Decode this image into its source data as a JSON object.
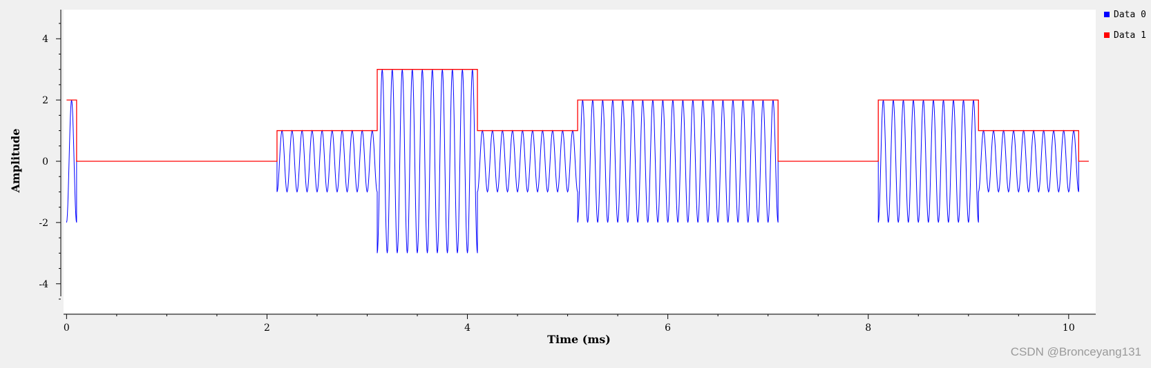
{
  "chart_data": {
    "type": "line",
    "title": "",
    "xlabel": "Time (ms)",
    "ylabel": "Amplitude",
    "xlim": [
      -0.03,
      10.27
    ],
    "ylim": [
      -4.95,
      4.95
    ],
    "xticks": [
      0,
      2,
      4,
      6,
      8,
      10
    ],
    "yticks": [
      -4,
      -2,
      0,
      2,
      4
    ],
    "grid": false,
    "legend_position": "right, outside plot area",
    "segments": [
      {
        "start": 0.0,
        "end": 0.1,
        "amplitude": 2,
        "cycles": 1
      },
      {
        "start": 0.1,
        "end": 2.1,
        "amplitude": 0,
        "cycles": 0
      },
      {
        "start": 2.1,
        "end": 3.1,
        "amplitude": 1,
        "cycles": 10
      },
      {
        "start": 3.1,
        "end": 4.1,
        "amplitude": 3,
        "cycles": 10
      },
      {
        "start": 4.1,
        "end": 5.1,
        "amplitude": 1,
        "cycles": 10
      },
      {
        "start": 5.1,
        "end": 7.1,
        "amplitude": 2,
        "cycles": 20
      },
      {
        "start": 7.1,
        "end": 8.1,
        "amplitude": 0,
        "cycles": 0
      },
      {
        "start": 8.1,
        "end": 9.1,
        "amplitude": 2,
        "cycles": 10
      },
      {
        "start": 9.1,
        "end": 10.1,
        "amplitude": 1,
        "cycles": 10
      },
      {
        "start": 10.1,
        "end": 10.2,
        "amplitude": 0,
        "cycles": 0
      }
    ],
    "series": [
      {
        "name": "Data 0",
        "color": "#0000ff",
        "kind": "modulated carrier (amplitude × sin)"
      },
      {
        "name": "Data 1",
        "color": "#ff0000",
        "kind": "step envelope (amplitude level)"
      }
    ]
  },
  "watermark": "CSDN @Bronceyang131"
}
